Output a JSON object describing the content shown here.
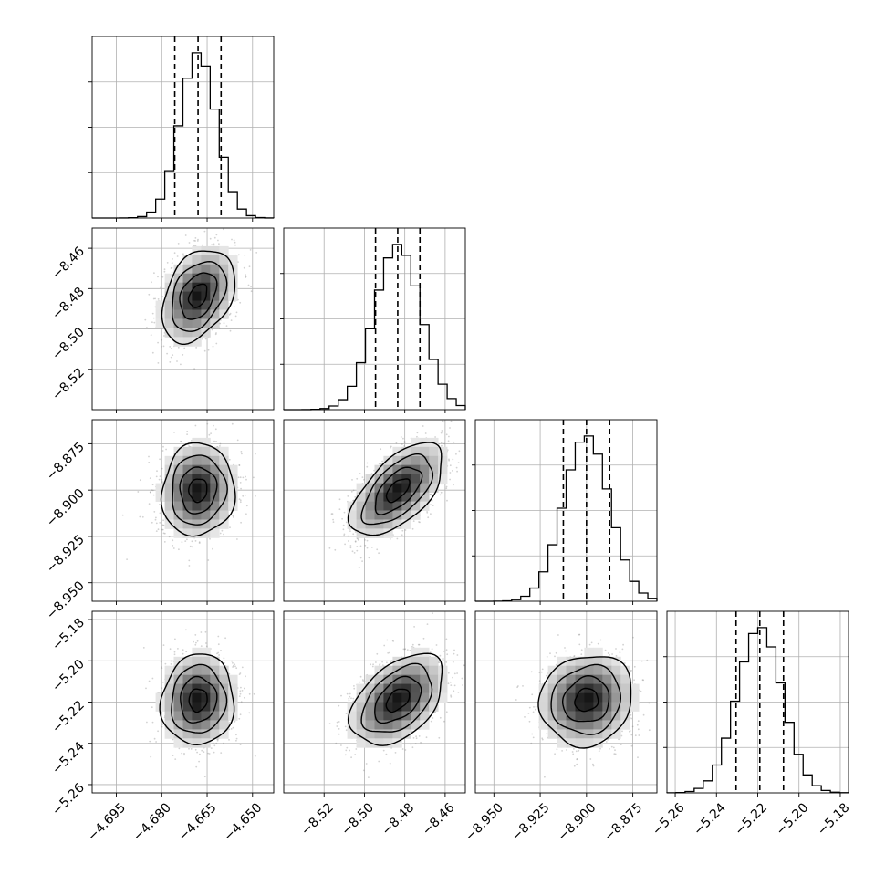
{
  "chart_data": {
    "type": "corner",
    "grid": true,
    "parameters": [
      {
        "range": [
          -4.703,
          -4.643
        ],
        "center": -4.668,
        "sigma": 0.006,
        "quantiles": [
          -4.6757,
          -4.668,
          -4.6604
        ],
        "ticks": [
          -4.695,
          -4.68,
          -4.665,
          -4.65
        ],
        "tick_labels": [
          "−4.695",
          "−4.680",
          "−4.665",
          "−4.650"
        ]
      },
      {
        "range": [
          -8.54,
          -8.45
        ],
        "center": -8.4835,
        "sigma": 0.0115,
        "quantiles": [
          -8.4945,
          -8.4835,
          -8.4725
        ],
        "ticks": [
          -8.52,
          -8.5,
          -8.48,
          -8.46
        ],
        "tick_labels": [
          "−8.52",
          "−8.50",
          "−8.48",
          "−8.46"
        ]
      },
      {
        "range": [
          -8.96,
          -8.862
        ],
        "center": -8.9,
        "sigma": 0.0125,
        "quantiles": [
          -8.9125,
          -8.9,
          -8.8875
        ],
        "ticks": [
          -8.95,
          -8.925,
          -8.9,
          -8.875
        ],
        "tick_labels": [
          "−8.950",
          "−8.925",
          "−8.900",
          "−8.875"
        ]
      },
      {
        "range": [
          -5.264,
          -5.176
        ],
        "center": -5.219,
        "sigma": 0.011,
        "quantiles": [
          -5.2305,
          -5.219,
          -5.2075
        ],
        "ticks": [
          -5.26,
          -5.24,
          -5.22,
          -5.2,
          -5.18
        ],
        "tick_labels": [
          "−5.26",
          "−5.24",
          "−5.22",
          "−5.20",
          "−5.18"
        ]
      }
    ],
    "correlations": [
      {
        "pair": [
          1,
          0
        ],
        "rho": 0.35
      },
      {
        "pair": [
          2,
          0
        ],
        "rho": 0.05
      },
      {
        "pair": [
          2,
          1
        ],
        "rho": 0.6
      },
      {
        "pair": [
          3,
          0
        ],
        "rho": 0.05
      },
      {
        "pair": [
          3,
          1
        ],
        "rho": 0.45
      },
      {
        "pair": [
          3,
          2
        ],
        "rho": 0.1
      }
    ],
    "contour_levels_sigma": [
      0.5,
      1.0,
      1.5,
      2.0
    ],
    "histogram_bins": 20,
    "colors": {
      "contour": "#000000",
      "points": "#7f7f7f",
      "grid": "#b0b0b0",
      "quantile_line": "#000000"
    }
  }
}
